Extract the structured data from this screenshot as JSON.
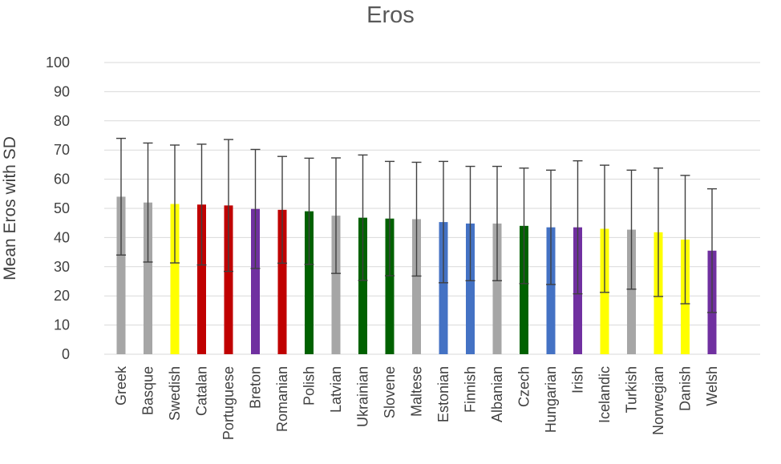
{
  "chart_data": {
    "type": "bar",
    "title": "Eros",
    "xlabel": "",
    "ylabel": "Mean Eros with SD",
    "ylim": [
      0,
      100
    ],
    "yticks": [
      0,
      10,
      20,
      30,
      40,
      50,
      60,
      70,
      80,
      90,
      100
    ],
    "grid": true,
    "categories": [
      "Greek",
      "Basque",
      "Swedish",
      "Catalan",
      "Portuguese",
      "Breton",
      "Romanian",
      "Polish",
      "Latvian",
      "Ukrainian",
      "Slovene",
      "Maltese",
      "Estonian",
      "Finnish",
      "Albanian",
      "Czech",
      "Hungarian",
      "Irish",
      "Icelandic",
      "Turkish",
      "Norwegian",
      "Danish",
      "Welsh"
    ],
    "values": [
      54,
      52,
      51.5,
      51.3,
      51,
      49.8,
      49.5,
      49,
      47.5,
      46.8,
      46.5,
      46.3,
      45.3,
      44.8,
      44.8,
      44,
      43.5,
      43.5,
      43,
      42.7,
      41.8,
      39.3,
      35.5
    ],
    "sd": [
      20,
      20.4,
      20.2,
      20.7,
      22.6,
      20.4,
      18.3,
      18.2,
      19.8,
      21.5,
      19.6,
      19.5,
      20.8,
      19.6,
      19.6,
      19.8,
      19.6,
      22.8,
      21.8,
      20.4,
      22,
      22,
      21.2
    ],
    "colors": [
      "#a6a6a6",
      "#a6a6a6",
      "#ffff00",
      "#c00000",
      "#c00000",
      "#7030a0",
      "#c00000",
      "#006100",
      "#a6a6a6",
      "#006100",
      "#006100",
      "#a6a6a6",
      "#4472c4",
      "#4472c4",
      "#a6a6a6",
      "#006100",
      "#4472c4",
      "#7030a0",
      "#ffff00",
      "#a6a6a6",
      "#ffff00",
      "#ffff00",
      "#7030a0"
    ]
  }
}
